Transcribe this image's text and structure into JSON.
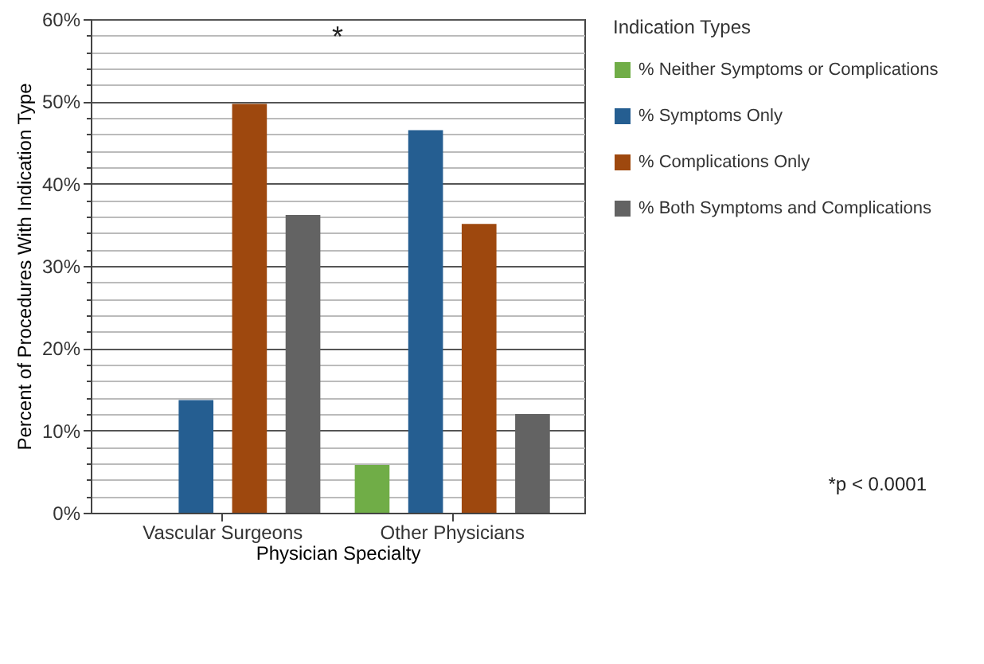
{
  "chart_data": {
    "type": "bar",
    "xlabel": "Physician Specialty",
    "ylabel": "Percent of Procedures With Indication Type",
    "legend_title": "Indication Types",
    "categories": [
      "Vascular Surgeons",
      "Other Physicians"
    ],
    "series": [
      {
        "name": "% Neither Symptoms or Complications",
        "color": "#70ad47",
        "values": [
          0,
          5.8
        ]
      },
      {
        "name": "% Symptoms Only",
        "color": "#255e91",
        "values": [
          13.7,
          46.5
        ]
      },
      {
        "name": "% Complications Only",
        "color": "#9e480e",
        "values": [
          49.7,
          35.1
        ]
      },
      {
        "name": "% Both Symptoms and Complications",
        "color": "#636363",
        "values": [
          36.2,
          12.0
        ]
      }
    ],
    "ylim": [
      0,
      60
    ],
    "yticks": [
      {
        "value": 0,
        "label": "0%"
      },
      {
        "value": 2,
        "label": null
      },
      {
        "value": 4,
        "label": null
      },
      {
        "value": 6,
        "label": null
      },
      {
        "value": 8,
        "label": null
      },
      {
        "value": 10,
        "label": "10%"
      },
      {
        "value": 12,
        "label": null
      },
      {
        "value": 14,
        "label": null
      },
      {
        "value": 16,
        "label": null
      },
      {
        "value": 18,
        "label": null
      },
      {
        "value": 20,
        "label": "20%"
      },
      {
        "value": 22,
        "label": null
      },
      {
        "value": 24,
        "label": null
      },
      {
        "value": 26,
        "label": null
      },
      {
        "value": 28,
        "label": null
      },
      {
        "value": 30,
        "label": "30%"
      },
      {
        "value": 32,
        "label": null
      },
      {
        "value": 34,
        "label": null
      },
      {
        "value": 36,
        "label": null
      },
      {
        "value": 38,
        "label": null
      },
      {
        "value": 40,
        "label": "40%"
      },
      {
        "value": 42,
        "label": null
      },
      {
        "value": 44,
        "label": null
      },
      {
        "value": 46,
        "label": null
      },
      {
        "value": 48,
        "label": null
      },
      {
        "value": 50,
        "label": "50%"
      },
      {
        "value": 52,
        "label": null
      },
      {
        "value": 54,
        "label": null
      },
      {
        "value": 56,
        "label": null
      },
      {
        "value": 58,
        "label": null
      },
      {
        "value": 60,
        "label": "60%"
      }
    ],
    "grid": "y",
    "legend": "right",
    "annotations": [
      "*",
      "*p < 0.0001"
    ]
  }
}
